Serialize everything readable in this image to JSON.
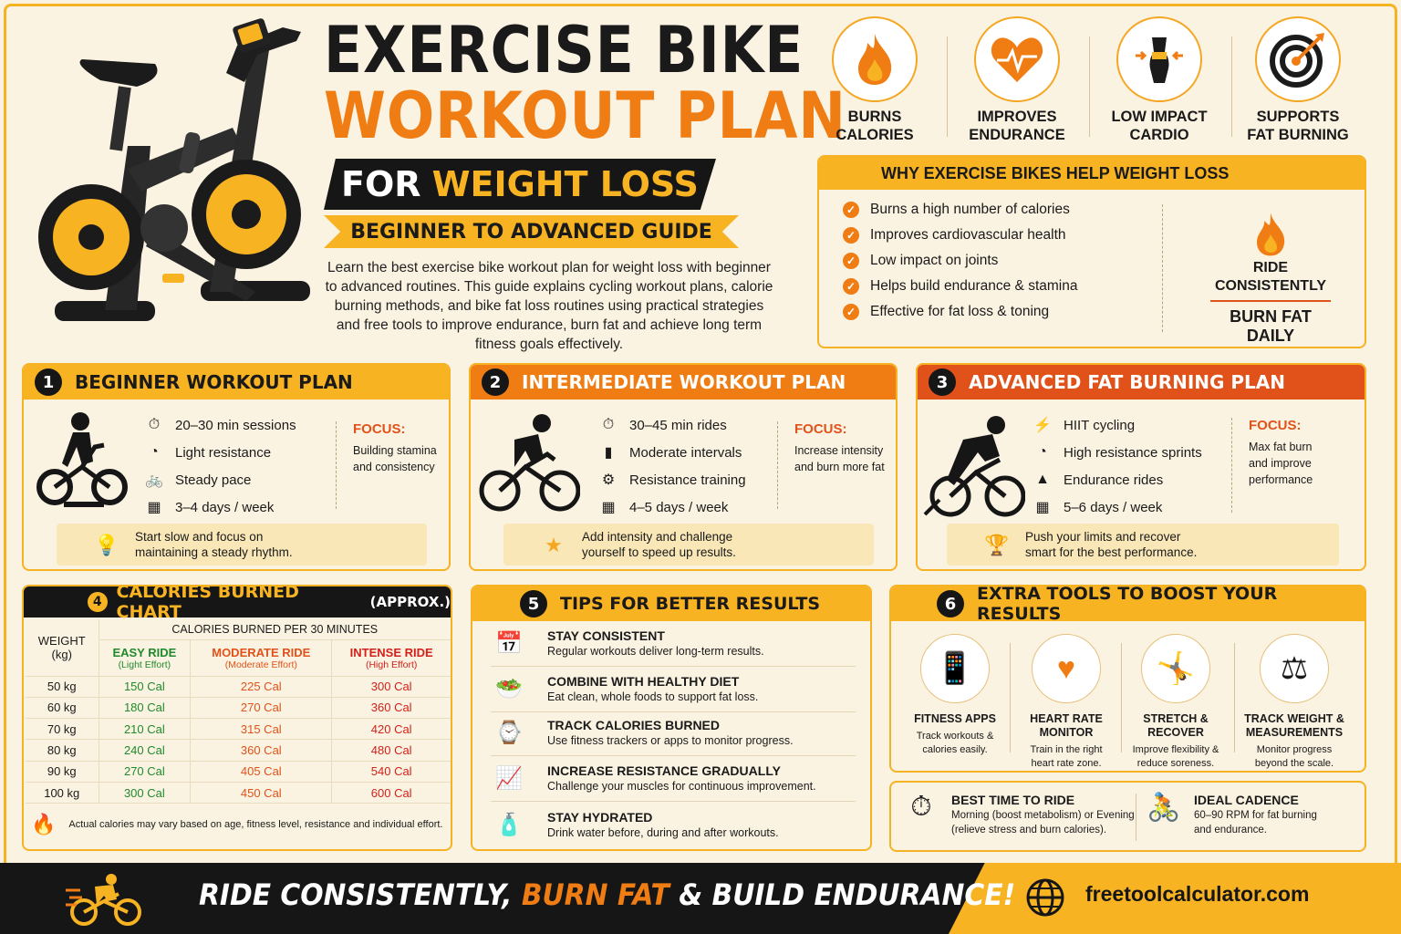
{
  "header": {
    "title_line1": "EXERCISE BIKE",
    "title_line2": "WORKOUT PLAN",
    "banner_for": "FOR",
    "banner_weight_loss": "WEIGHT LOSS",
    "subbanner": "BEGINNER TO ADVANCED GUIDE",
    "intro": "Learn the best exercise bike workout plan for weight loss with beginner to advanced routines. This guide explains cycling workout plans, calorie burning methods, and bike fat loss routines using practical strategies and free tools to improve endurance, burn fat and achieve long term fitness goals effectively."
  },
  "benefits": [
    {
      "label": "BURNS\nCALORIES",
      "icon": "flame-icon"
    },
    {
      "label": "IMPROVES\nENDURANCE",
      "icon": "heart-pulse-icon"
    },
    {
      "label": "LOW IMPACT\nCARDIO",
      "icon": "body-icon"
    },
    {
      "label": "SUPPORTS\nFAT BURNING",
      "icon": "target-icon"
    }
  ],
  "why": {
    "title": "WHY EXERCISE BIKES HELP WEIGHT LOSS",
    "items": [
      "Burns a high number of calories",
      "Improves cardiovascular health",
      "Low impact on joints",
      "Helps build endurance & stamina",
      "Effective for fat loss & toning"
    ],
    "callout_top": "RIDE\nCONSISTENTLY",
    "callout_bottom": "BURN FAT\nDAILY"
  },
  "plans": [
    {
      "num": "1",
      "title": "BEGINNER WORKOUT PLAN",
      "items": [
        {
          "icon": "⏱",
          "text": "20–30 min sessions"
        },
        {
          "icon": "◔",
          "text": "Light resistance"
        },
        {
          "icon": "🚲",
          "text": "Steady pace"
        },
        {
          "icon": "▦",
          "text": "3–4 days / week"
        }
      ],
      "focus_title": "FOCUS:",
      "focus_text": "Building stamina\nand consistency",
      "tip": "Start slow and focus on\nmaintaining a steady rhythm.",
      "tip_icon": "💡"
    },
    {
      "num": "2",
      "title": "INTERMEDIATE WORKOUT PLAN",
      "items": [
        {
          "icon": "⏱",
          "text": "30–45 min rides"
        },
        {
          "icon": "▮",
          "text": "Moderate intervals"
        },
        {
          "icon": "⚙",
          "text": "Resistance training"
        },
        {
          "icon": "▦",
          "text": "4–5 days / week"
        }
      ],
      "focus_title": "FOCUS:",
      "focus_text": "Increase intensity\nand burn more fat",
      "tip": "Add intensity and challenge\nyourself to speed up results.",
      "tip_icon": "★"
    },
    {
      "num": "3",
      "title": "ADVANCED FAT BURNING PLAN",
      "items": [
        {
          "icon": "⚡",
          "text": "HIIT cycling"
        },
        {
          "icon": "◔",
          "text": "High resistance sprints"
        },
        {
          "icon": "▲",
          "text": "Endurance rides"
        },
        {
          "icon": "▦",
          "text": "5–6 days / week"
        }
      ],
      "focus_title": "FOCUS:",
      "focus_text": "Max fat burn\nand improve\nperformance",
      "tip": "Push your limits and recover\nsmart for the best performance.",
      "tip_icon": "🏆"
    }
  ],
  "calories": {
    "num": "4",
    "title": "CALORIES BURNED CHART",
    "approx": "(APPROX.)",
    "weight_header": "WEIGHT\n(kg)",
    "group_header": "CALORIES BURNED PER 30 MINUTES",
    "cols": [
      {
        "name": "EASY RIDE",
        "sub": "(Light Effort)"
      },
      {
        "name": "MODERATE RIDE",
        "sub": "(Moderate Effort)"
      },
      {
        "name": "INTENSE RIDE",
        "sub": "(High Effort)"
      }
    ],
    "rows": [
      [
        "50 kg",
        "150 Cal",
        "225 Cal",
        "300 Cal"
      ],
      [
        "60 kg",
        "180 Cal",
        "270 Cal",
        "360 Cal"
      ],
      [
        "70 kg",
        "210 Cal",
        "315 Cal",
        "420 Cal"
      ],
      [
        "80 kg",
        "240 Cal",
        "360 Cal",
        "480 Cal"
      ],
      [
        "90 kg",
        "270 Cal",
        "405 Cal",
        "540 Cal"
      ],
      [
        "100 kg",
        "300 Cal",
        "450 Cal",
        "600 Cal"
      ]
    ],
    "note": "Actual calories may vary based on age, fitness level, resistance and individual effort."
  },
  "tips": {
    "num": "5",
    "title": "TIPS FOR BETTER RESULTS",
    "items": [
      {
        "icon": "📅",
        "title": "STAY CONSISTENT",
        "desc": "Regular workouts deliver long-term results."
      },
      {
        "icon": "🥗",
        "title": "COMBINE WITH HEALTHY DIET",
        "desc": "Eat clean, whole foods to support fat loss."
      },
      {
        "icon": "⌚",
        "title": "TRACK CALORIES BURNED",
        "desc": "Use fitness trackers or apps to monitor progress."
      },
      {
        "icon": "📈",
        "title": "INCREASE RESISTANCE GRADUALLY",
        "desc": "Challenge your muscles for continuous improvement."
      },
      {
        "icon": "🧴",
        "title": "STAY HYDRATED",
        "desc": "Drink water before, during and after workouts."
      }
    ]
  },
  "tools": {
    "num": "6",
    "title": "EXTRA TOOLS TO BOOST YOUR RESULTS",
    "items": [
      {
        "icon": "📱",
        "name": "FITNESS APPS",
        "desc": "Track workouts &\ncalories easily."
      },
      {
        "icon": "♥",
        "name": "HEART RATE\nMONITOR",
        "desc": "Train in the right\nheart rate zone."
      },
      {
        "icon": "🤸",
        "name": "STRETCH &\nRECOVER",
        "desc": "Improve flexibility &\nreduce soreness."
      },
      {
        "icon": "⚖",
        "name": "TRACK WEIGHT &\nMEASUREMENTS",
        "desc": "Monitor progress\nbeyond the scale."
      }
    ]
  },
  "best_time": {
    "title": "BEST TIME TO RIDE",
    "desc": "Morning (boost metabolism) or Evening\n(relieve stress and burn calories)."
  },
  "cadence": {
    "title": "IDEAL CADENCE",
    "desc": "60–90 RPM for fat burning\nand endurance."
  },
  "footer": {
    "slogan_a": "RIDE CONSISTENTLY,",
    "slogan_b": "BURN FAT",
    "slogan_c": "& BUILD ENDURANCE!",
    "site": "freetoolcalculator.com"
  },
  "colors": {
    "accent": "#f8b323",
    "orange": "#f07d14",
    "red": "#e0521a",
    "dark": "#161616",
    "bg": "#fbf3e2"
  }
}
